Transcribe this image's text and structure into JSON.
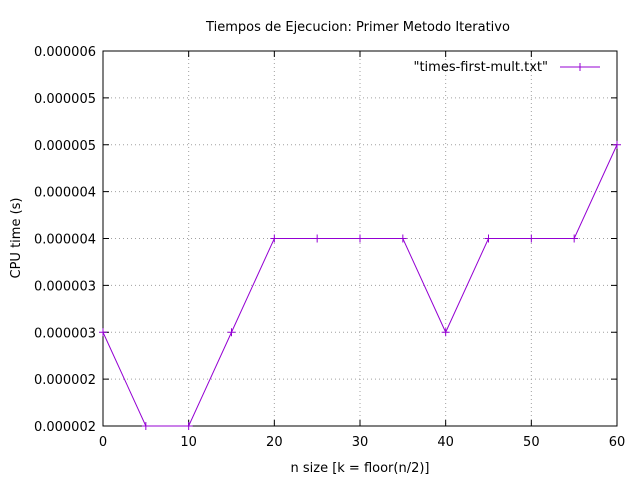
{
  "chart_data": {
    "type": "line",
    "title": "Tiempos de Ejecucion: Primer Metodo Iterativo",
    "xlabel": "n size [k = floor(n/2)]",
    "ylabel": "CPU time (s)",
    "xlim": [
      0,
      60
    ],
    "ylim": [
      1.5e-06,
      5.5e-06
    ],
    "x_ticks": [
      0,
      10,
      20,
      30,
      40,
      50,
      60
    ],
    "y_ticks": [
      1.5e-06,
      2e-06,
      2.5e-06,
      3e-06,
      3.5e-06,
      4e-06,
      4.5e-06,
      5e-06,
      5.5e-06
    ],
    "y_tick_labels": [
      "0.000002",
      "0.000002",
      "0.000003",
      "0.000003",
      "0.000004",
      "0.000004",
      "0.000005",
      "0.000005",
      "0.000006"
    ],
    "grid": true,
    "legend_position": "top-right",
    "series": [
      {
        "name": "\"times-first-mult.txt\"",
        "color": "#9400d3",
        "marker": "plus",
        "x": [
          0,
          5,
          10,
          15,
          20,
          25,
          30,
          35,
          40,
          45,
          50,
          55,
          60
        ],
        "y": [
          2.5e-06,
          1.5e-06,
          1.5e-06,
          2.5e-06,
          3.5e-06,
          3.5e-06,
          3.5e-06,
          3.5e-06,
          2.5e-06,
          3.5e-06,
          3.5e-06,
          3.5e-06,
          4.5e-06
        ]
      }
    ]
  }
}
